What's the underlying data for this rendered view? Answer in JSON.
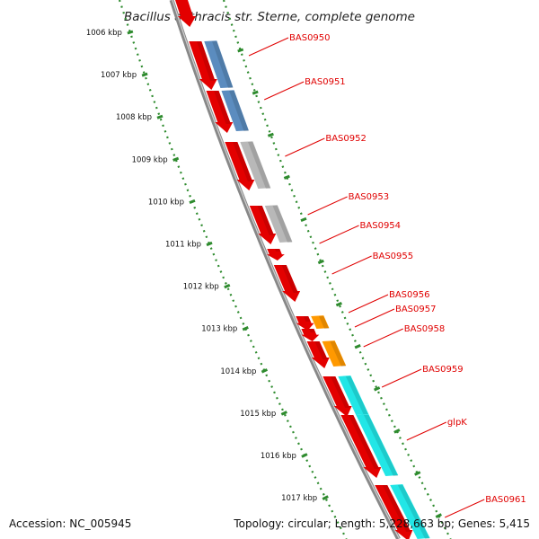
{
  "title": "Bacillus anthracis str. Sterne, complete genome",
  "footer": {
    "accession": "Accession: NC_005945",
    "topology": "Topology: circular; Length: 5,228,663 bp; Genes: 5,415"
  },
  "colors": {
    "forward": "#e30000",
    "cog_blue": "#5b8cbf",
    "cog_gray": "#b8b8b8",
    "cog_orange": "#ff9900",
    "cog_cyan": "#22e6e6",
    "tick": "#2e8b2e",
    "label": "#e00000",
    "backbone": "#888888"
  },
  "kbp_ticks": [
    "1006 kbp",
    "1007 kbp",
    "1008 kbp",
    "1009 kbp",
    "1010 kbp",
    "1011 kbp",
    "1012 kbp",
    "1013 kbp",
    "1014 kbp",
    "1015 kbp",
    "1016 kbp",
    "1017 kbp"
  ],
  "genes": [
    {
      "name": "BAS0950",
      "cog": "cog_blue"
    },
    {
      "name": "BAS0951",
      "cog": "cog_blue"
    },
    {
      "name": "BAS0952",
      "cog": "cog_gray"
    },
    {
      "name": "BAS0953",
      "cog": "cog_gray"
    },
    {
      "name": "BAS0954",
      "cog": ""
    },
    {
      "name": "BAS0955",
      "cog": ""
    },
    {
      "name": "BAS0956",
      "cog": "cog_orange"
    },
    {
      "name": "BAS0957",
      "cog": ""
    },
    {
      "name": "BAS0958",
      "cog": "cog_orange"
    },
    {
      "name": "BAS0959",
      "cog": "cog_cyan"
    },
    {
      "name": "glpK",
      "cog": "cog_cyan"
    },
    {
      "name": "BAS0961",
      "cog": "cog_cyan"
    }
  ]
}
